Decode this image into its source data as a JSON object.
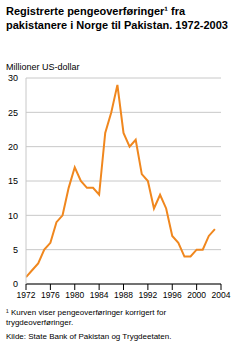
{
  "chart_data": {
    "type": "line",
    "title": "Registrerte pengeoverføringer¹ fra pakistanere i Norge til Pakistan. 1972-2003",
    "y_label": "Millioner US-dollar",
    "footnote": "¹ Kurven viser pengeoverføringer korrigert for trygdeoverføringer.",
    "source": "Kilde: State Bank of Pakistan og Trygdeetaten.",
    "x": [
      1972,
      1973,
      1974,
      1975,
      1976,
      1977,
      1978,
      1979,
      1980,
      1981,
      1982,
      1983,
      1984,
      1985,
      1986,
      1987,
      1988,
      1989,
      1990,
      1991,
      1992,
      1993,
      1994,
      1995,
      1996,
      1997,
      1998,
      1999,
      2000,
      2001,
      2002,
      2003
    ],
    "values": [
      1,
      2,
      3,
      5,
      6,
      9,
      10,
      14,
      17,
      15,
      14,
      14,
      13,
      22,
      25,
      29,
      22,
      20,
      21,
      16,
      15,
      11,
      13,
      11,
      7,
      6,
      4,
      4,
      5,
      5,
      7,
      8
    ],
    "color": "#f0871e",
    "xlim": [
      1972,
      2004
    ],
    "xticks": [
      1972,
      1976,
      1980,
      1984,
      1988,
      1992,
      1996,
      2000,
      2004
    ],
    "ylim": [
      0,
      30
    ],
    "yticks": [
      0,
      5,
      10,
      15,
      20,
      25,
      30
    ],
    "grid": true
  }
}
